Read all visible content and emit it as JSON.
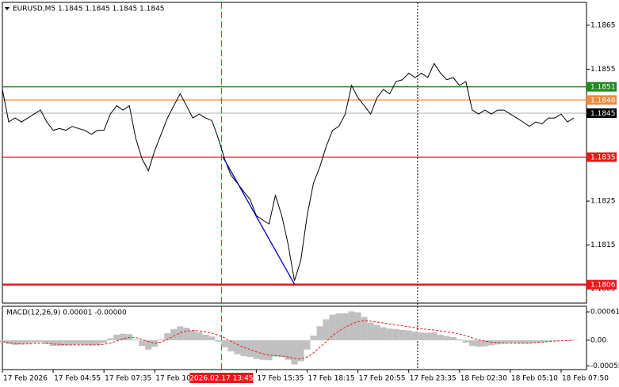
{
  "chart_data": [
    {
      "type": "line",
      "title": "EURUSD,M5 1.1845 1.1845 1.1845 1.1845",
      "xlim": [
        0,
        92
      ],
      "ylim": [
        1.18018,
        1.18702
      ],
      "yticks": [
        1.1865,
        1.1855,
        1.1825,
        1.1815,
        1.1805
      ],
      "xticks": [
        {
          "value": 0,
          "label": "17 Feb 2026"
        },
        {
          "value": 8,
          "label": "17 Feb 04:55"
        },
        {
          "value": 16,
          "label": "17 Feb 07:35"
        },
        {
          "value": 24,
          "label": "17 Feb 10:15"
        },
        {
          "value": 40,
          "label": "17 Feb 15:35"
        },
        {
          "value": 48,
          "label": "17 Feb 18:15"
        },
        {
          "value": 56,
          "label": "17 Feb 20:55"
        },
        {
          "value": 64,
          "label": "17 Feb 23:35"
        },
        {
          "value": 72,
          "label": "18 Feb 02:30"
        },
        {
          "value": 80,
          "label": "18 Feb 05:10"
        },
        {
          "value": 88,
          "label": "18 Feb 07:50"
        }
      ],
      "series": [
        {
          "color": "#000000",
          "values": [
            1.18504,
            1.1843,
            1.18439,
            1.1843,
            1.18439,
            1.18448,
            1.18457,
            1.1843,
            1.18411,
            1.18415,
            1.18411,
            1.1842,
            1.18415,
            1.18411,
            1.18402,
            1.18411,
            1.18411,
            1.18448,
            1.18467,
            1.18457,
            1.18467,
            1.18393,
            1.18346,
            1.18319,
            1.18365,
            1.18402,
            1.18439,
            1.18467,
            1.18494,
            1.18467,
            1.18439,
            1.18448,
            1.18439,
            1.18433,
            1.18393,
            1.18346,
            1.18309,
            1.18291,
            1.18272,
            1.18254,
            1.18217,
            1.18207,
            1.18198,
            1.18263,
            1.18217,
            1.18152,
            1.18069,
            1.18115,
            1.18217,
            1.18291,
            1.18328,
            1.18374,
            1.18411,
            1.1842,
            1.18448,
            1.18513,
            1.18485,
            1.18467,
            1.18448,
            1.18485,
            1.18504,
            1.18494,
            1.18522,
            1.18526,
            1.18541,
            1.18531,
            1.18541,
            1.18531,
            1.18563,
            1.18541,
            1.18526,
            1.18531,
            1.18513,
            1.18522,
            1.18457,
            1.18448,
            1.18457,
            1.18448,
            1.18457,
            1.18457,
            1.18448,
            1.18439,
            1.1843,
            1.1842,
            1.1843,
            1.18426,
            1.18439,
            1.18439,
            1.18448,
            1.1843,
            1.18439
          ]
        }
      ],
      "levels": [
        {
          "value": 1.1851,
          "color": "#1f8a1f"
        },
        {
          "value": 1.1848,
          "color": "#f08a3c"
        },
        {
          "value": 1.1845,
          "color": "#c0c0c0",
          "box_color": "#000000"
        },
        {
          "value": 1.1835,
          "color": "#e8181c"
        },
        {
          "value": 1.1806,
          "color": "#e8181c"
        }
      ],
      "trendline": {
        "color": "#0000cc",
        "x": [
          34.75,
          46
        ],
        "y": [
          1.1835,
          1.18061
        ]
      },
      "vlines": [
        65.4
      ],
      "cursor": {
        "x": 34.5,
        "label": "2026.02.17 13:45",
        "color": "#e8181c"
      }
    },
    {
      "type": "macd",
      "title": "MACD(12,26,9) 0.00001 -0.00000",
      "xlim": [
        0,
        92
      ],
      "ylim": [
        -0.00063,
        0.00073
      ],
      "yticks": [
        0.00061,
        {
          "value": 0,
          "label": "0.00"
        },
        -0.00055
      ],
      "series": [
        {
          "type": "bar",
          "color": "#c0c0c0",
          "values": [
            -5e-05,
            -8e-05,
            -0.0001,
            -9e-05,
            -7e-05,
            -5e-05,
            -4e-05,
            -8e-05,
            -0.00012,
            -0.00012,
            -0.00011,
            -0.0001,
            -9e-05,
            -0.0001,
            -0.00011,
            -0.0001,
            -6e-05,
            4e-05,
            0.00012,
            0.00014,
            0.00013,
            2e-05,
            -0.00012,
            -0.0002,
            -0.00014,
            2e-05,
            0.00015,
            0.00024,
            0.0003,
            0.00027,
            0.00021,
            0.00017,
            0.00012,
            8e-05,
            -3e-05,
            -0.00015,
            -0.00024,
            -0.0003,
            -0.00034,
            -0.00036,
            -0.0004,
            -0.00042,
            -0.00043,
            -0.00035,
            -0.00036,
            -0.00042,
            -0.00052,
            -0.00045,
            -0.0002,
            0.0001,
            0.0003,
            0.00045,
            0.00055,
            0.00058,
            0.00058,
            0.00062,
            0.0006,
            0.0005,
            0.00038,
            0.00033,
            0.00028,
            0.00025,
            0.00024,
            0.00022,
            0.00021,
            0.00019,
            0.00017,
            0.00016,
            0.00017,
            0.00012,
            9e-05,
            7e-05,
            2e-05,
            -5e-05,
            -0.00012,
            -0.00014,
            -0.00013,
            -0.00011,
            -9e-05,
            -7e-05,
            -6e-05,
            -6e-05,
            -7e-05,
            -7e-05,
            -5e-05,
            -4e-05,
            -2e-05,
            -1e-05,
            0.0,
            -1e-05,
            1e-05
          ]
        },
        {
          "type": "line",
          "color": "#e8181c",
          "values": [
            -3e-05,
            -5e-05,
            -7e-05,
            -8e-05,
            -8e-05,
            -7e-05,
            -6e-05,
            -6e-05,
            -8e-05,
            -9e-05,
            -0.0001,
            -0.0001,
            -0.0001,
            -0.0001,
            -0.0001,
            -0.0001,
            -9e-05,
            -6e-05,
            -2e-05,
            3e-05,
            6e-05,
            6e-05,
            2e-05,
            -3e-05,
            -6e-05,
            -4e-05,
            2e-05,
            9e-05,
            0.00016,
            0.0002,
            0.00021,
            0.0002,
            0.00018,
            0.00015,
            0.00011,
            5e-05,
            -2e-05,
            -9e-05,
            -0.00015,
            -0.0002,
            -0.00025,
            -0.00029,
            -0.00032,
            -0.00033,
            -0.00034,
            -0.00036,
            -0.00039,
            -0.0004,
            -0.00036,
            -0.00027,
            -0.00015,
            -3e-05,
            0.0001,
            0.0002,
            0.00028,
            0.00035,
            0.0004,
            0.00042,
            0.00041,
            0.00039,
            0.00037,
            0.00035,
            0.00033,
            0.00031,
            0.00029,
            0.00027,
            0.00025,
            0.00023,
            0.00022,
            0.0002,
            0.00018,
            0.00016,
            0.00013,
            0.0001,
            5e-05,
            1e-05,
            -2e-05,
            -4e-05,
            -5e-05,
            -6e-05,
            -6e-05,
            -6e-05,
            -6e-05,
            -6e-05,
            -5e-05,
            -4e-05,
            -3e-05,
            -2e-05,
            -1e-05,
            -1e-05,
            0.0
          ]
        }
      ]
    }
  ]
}
